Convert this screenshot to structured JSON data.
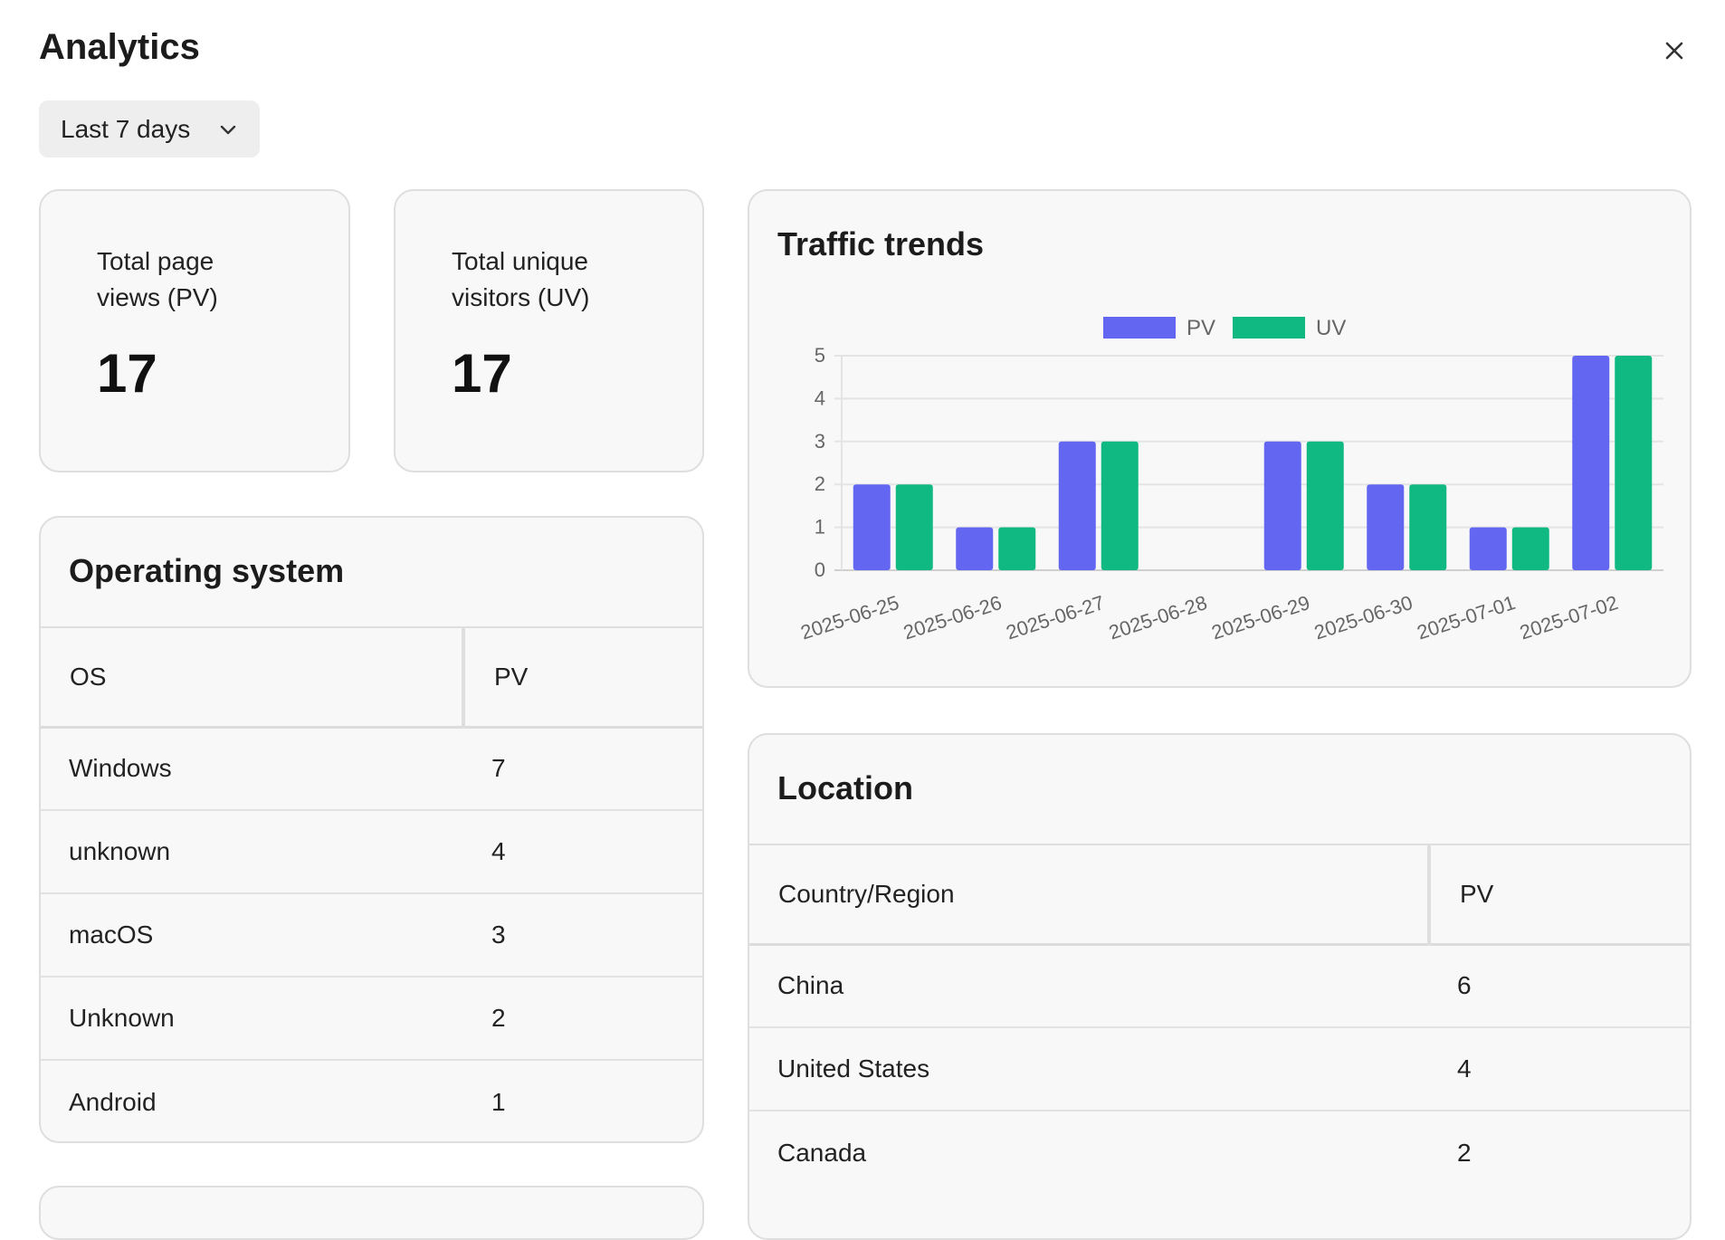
{
  "header": {
    "title": "Analytics",
    "close_icon": "close-icon"
  },
  "range_select": {
    "value": "Last 7 days",
    "icon": "chevron-down-icon"
  },
  "stats": [
    {
      "label": "Total page views (PV)",
      "value": "17"
    },
    {
      "label": "Total unique visitors (UV)",
      "value": "17"
    }
  ],
  "os_section": {
    "title": "Operating system",
    "columns": [
      "OS",
      "PV"
    ],
    "rows": [
      [
        "Windows",
        "7"
      ],
      [
        "unknown",
        "4"
      ],
      [
        "macOS",
        "3"
      ],
      [
        "Unknown",
        "2"
      ],
      [
        "Android",
        "1"
      ]
    ]
  },
  "traffic": {
    "title": "Traffic trends"
  },
  "chart_data": {
    "type": "bar",
    "title": "Traffic trends",
    "categories": [
      "2025-06-25",
      "2025-06-26",
      "2025-06-27",
      "2025-06-28",
      "2025-06-29",
      "2025-06-30",
      "2025-07-01",
      "2025-07-02"
    ],
    "series": [
      {
        "name": "PV",
        "values": [
          2,
          1,
          3,
          0,
          3,
          2,
          1,
          5
        ],
        "color": "#6366f1"
      },
      {
        "name": "UV",
        "values": [
          2,
          1,
          3,
          0,
          3,
          2,
          1,
          5
        ],
        "color": "#10b981"
      }
    ],
    "yticks": [
      "0",
      "1",
      "2",
      "3",
      "4",
      "5"
    ],
    "ylim": [
      0,
      5
    ],
    "legend": "top-center",
    "grid": true
  },
  "location_section": {
    "title": "Location",
    "columns": [
      "Country/Region",
      "PV"
    ],
    "rows": [
      [
        "China",
        "6"
      ],
      [
        "United States",
        "4"
      ],
      [
        "Canada",
        "2"
      ]
    ]
  }
}
